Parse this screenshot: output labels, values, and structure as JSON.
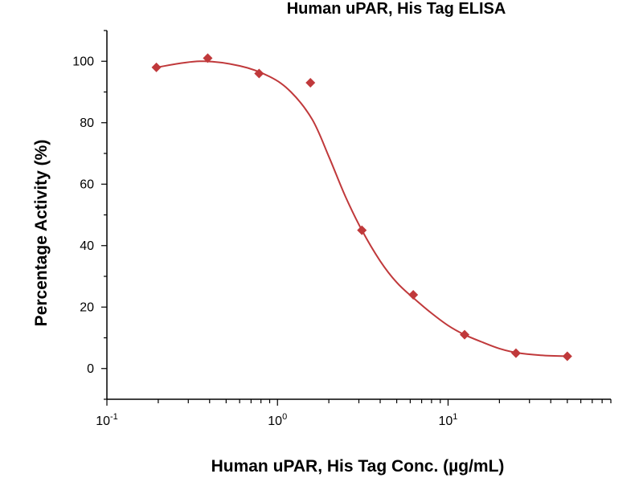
{
  "chart_data": {
    "type": "scatter",
    "title": "Human uPAR, His Tag ELISA",
    "xlabel": "Human uPAR, His Tag Conc. (µg/mL)",
    "ylabel": "Percentage Activity (%)",
    "x_scale": "log",
    "xlim": [
      0.1,
      90
    ],
    "ylim": [
      -10,
      110
    ],
    "x_ticks": [
      {
        "base": "10",
        "exp": "-1",
        "value": 0.1
      },
      {
        "base": "10",
        "exp": "0",
        "value": 1
      },
      {
        "base": "10",
        "exp": "1",
        "value": 10
      }
    ],
    "y_ticks": [
      0,
      20,
      40,
      60,
      80,
      100
    ],
    "grid": false,
    "color": "#c0393b",
    "series": [
      {
        "values": [
          {
            "x": 0.195,
            "y": 98
          },
          {
            "x": 0.39,
            "y": 101
          },
          {
            "x": 0.78,
            "y": 96
          },
          {
            "x": 1.56,
            "y": 93
          },
          {
            "x": 3.125,
            "y": 45
          },
          {
            "x": 6.25,
            "y": 24
          },
          {
            "x": 12.5,
            "y": 11
          },
          {
            "x": 25,
            "y": 5
          },
          {
            "x": 50,
            "y": 4
          }
        ]
      }
    ],
    "fit_curve": [
      {
        "x": 0.195,
        "y": 98
      },
      {
        "x": 0.35,
        "y": 100
      },
      {
        "x": 0.6,
        "y": 98.5
      },
      {
        "x": 0.9,
        "y": 95
      },
      {
        "x": 1.2,
        "y": 90
      },
      {
        "x": 1.6,
        "y": 81
      },
      {
        "x": 2.0,
        "y": 69
      },
      {
        "x": 2.5,
        "y": 56
      },
      {
        "x": 3.125,
        "y": 45
      },
      {
        "x": 4.0,
        "y": 35
      },
      {
        "x": 5.0,
        "y": 28
      },
      {
        "x": 6.25,
        "y": 23
      },
      {
        "x": 8.0,
        "y": 18
      },
      {
        "x": 10.0,
        "y": 14
      },
      {
        "x": 12.5,
        "y": 11
      },
      {
        "x": 16.0,
        "y": 8.5
      },
      {
        "x": 20.0,
        "y": 6.5
      },
      {
        "x": 25.0,
        "y": 5.2
      },
      {
        "x": 35.0,
        "y": 4.3
      },
      {
        "x": 50.0,
        "y": 4
      }
    ]
  }
}
